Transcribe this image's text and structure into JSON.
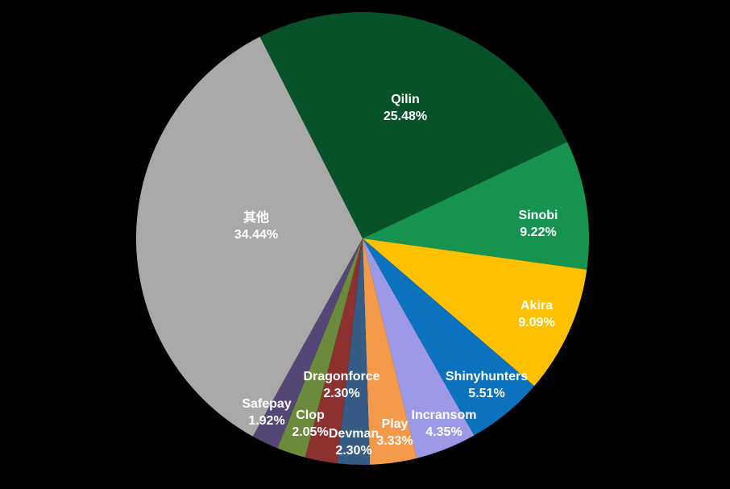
{
  "chart_data": {
    "type": "pie",
    "title": "",
    "legend": "none",
    "background_color": "#000000",
    "label_text_color": "#ffffff",
    "start_angle_deg": -27,
    "direction": "clockwise",
    "slices": [
      {
        "name": "Qilin",
        "value": 25.48,
        "pct_label": "25.48%",
        "color": "#075229"
      },
      {
        "name": "Sinobi",
        "value": 9.22,
        "pct_label": "9.22%",
        "color": "#16934F"
      },
      {
        "name": "Akira",
        "value": 9.09,
        "pct_label": "9.09%",
        "color": "#FDC101"
      },
      {
        "name": "Shinyhunters",
        "value": 5.51,
        "pct_label": "5.51%",
        "color": "#0B72BE"
      },
      {
        "name": "Incransom",
        "value": 4.35,
        "pct_label": "4.35%",
        "color": "#9C9AE8"
      },
      {
        "name": "Play",
        "value": 3.33,
        "pct_label": "3.33%",
        "color": "#F2994A"
      },
      {
        "name": "Devman",
        "value": 2.3,
        "pct_label": "2.30%",
        "color": "#365B85"
      },
      {
        "name": "Dragonforce",
        "value": 2.3,
        "pct_label": "2.30%",
        "color": "#8C3130"
      },
      {
        "name": "Clop",
        "value": 2.05,
        "pct_label": "2.05%",
        "color": "#6B8A3C"
      },
      {
        "name": "Safepay",
        "value": 1.92,
        "pct_label": "1.92%",
        "color": "#544677"
      },
      {
        "name": "其他",
        "value": 34.44,
        "pct_label": "34.44%",
        "color": "#A9A9A9"
      }
    ]
  }
}
